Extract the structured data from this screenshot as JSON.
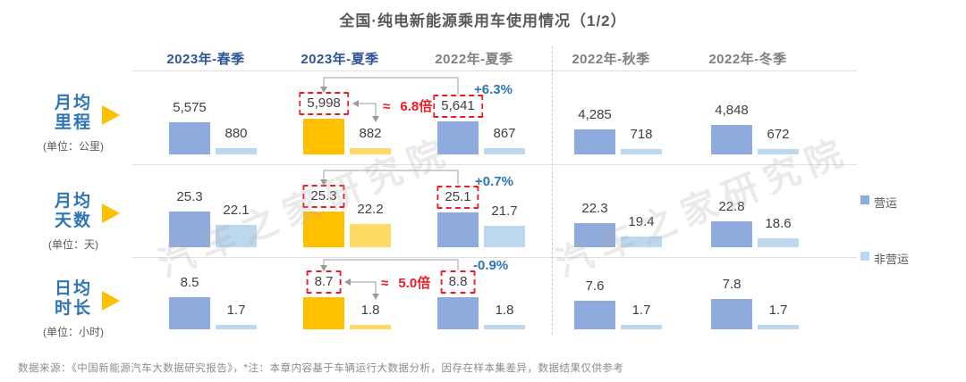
{
  "title": "全国·纯电新能源乘用车使用情况（1/2）",
  "columns": [
    {
      "label": "2023年-春季",
      "highlight": true
    },
    {
      "label": "2023年-夏季",
      "highlight": true
    },
    {
      "label": "2022年-夏季",
      "highlight": false
    },
    {
      "label": "2022年-秋季",
      "highlight": false
    },
    {
      "label": "2022年-冬季",
      "highlight": false
    }
  ],
  "rows": [
    {
      "label_lines": [
        "月均",
        "里程"
      ],
      "unit": "(单位：公里)",
      "yoy": "+6.3%",
      "ratio": "≈ 6.8倍",
      "cells": [
        {
          "op": "5,575",
          "nonop": "880",
          "boxed": false,
          "highlight": false
        },
        {
          "op": "5,998",
          "nonop": "882",
          "boxed": true,
          "highlight": true
        },
        {
          "op": "5,641",
          "nonop": "867",
          "boxed": true,
          "highlight": false
        },
        {
          "op": "4,285",
          "nonop": "718",
          "boxed": false,
          "highlight": false
        },
        {
          "op": "4,848",
          "nonop": "672",
          "boxed": false,
          "highlight": false
        }
      ]
    },
    {
      "label_lines": [
        "月均",
        "天数"
      ],
      "unit": "(单位：天)",
      "yoy": "+0.7%",
      "ratio": "",
      "cells": [
        {
          "op": "25.3",
          "nonop": "22.1",
          "boxed": false,
          "highlight": false
        },
        {
          "op": "25.3",
          "nonop": "22.2",
          "boxed": true,
          "highlight": true
        },
        {
          "op": "25.1",
          "nonop": "21.7",
          "boxed": true,
          "highlight": false
        },
        {
          "op": "22.3",
          "nonop": "19.4",
          "boxed": false,
          "highlight": false
        },
        {
          "op": "22.8",
          "nonop": "18.6",
          "boxed": false,
          "highlight": false
        }
      ]
    },
    {
      "label_lines": [
        "日均",
        "时长"
      ],
      "unit": "(单位：小时)",
      "yoy": "-0.9%",
      "ratio": "≈ 5.0倍",
      "cells": [
        {
          "op": "8.5",
          "nonop": "1.7",
          "boxed": false,
          "highlight": false
        },
        {
          "op": "8.7",
          "nonop": "1.8",
          "boxed": true,
          "highlight": true
        },
        {
          "op": "8.8",
          "nonop": "1.8",
          "boxed": true,
          "highlight": false
        },
        {
          "op": "7.6",
          "nonop": "1.7",
          "boxed": false,
          "highlight": false
        },
        {
          "op": "7.8",
          "nonop": "1.7",
          "boxed": false,
          "highlight": false
        }
      ]
    }
  ],
  "legend": [
    {
      "label": "营运",
      "color": "#8FAADC"
    },
    {
      "label": "非营运",
      "color": "#BDD7EE"
    }
  ],
  "colors": {
    "operating": "#8FAADC",
    "non_operating": "#BDD7EE",
    "highlight_operating": "#FFC000",
    "highlight_non_operating": "#FFD966",
    "red": "#EE1B24",
    "accent_blue": "#2E75B6",
    "header_blue": "#2F5597"
  },
  "footer": "数据来源：《中国新能源汽车大数据研究报告》，*注：本章内容基于车辆运行大数据分析，因存在样本集差异，数据结果仅供参考",
  "watermark": "汽车之家研究院",
  "chart_data": {
    "type": "bar",
    "title": "全国·纯电新能源乘用车使用情况（1/2）",
    "categories": [
      "2023年-春季",
      "2023年-夏季",
      "2022年-夏季",
      "2022年-秋季",
      "2022年-冬季"
    ],
    "legend_position": "right",
    "grid": false,
    "metrics": [
      {
        "name": "月均里程",
        "unit": "公里",
        "series": [
          {
            "name": "营运",
            "values": [
              5575,
              5998,
              5641,
              4285,
              4848
            ]
          },
          {
            "name": "非营运",
            "values": [
              880,
              882,
              867,
              718,
              672
            ]
          }
        ],
        "annotations": {
          "yoy_2023夏_vs_2022夏": "+6.3%",
          "营运_vs_非营运_2023夏": "≈ 6.8倍"
        }
      },
      {
        "name": "月均天数",
        "unit": "天",
        "series": [
          {
            "name": "营运",
            "values": [
              25.3,
              25.3,
              25.1,
              22.3,
              22.8
            ]
          },
          {
            "name": "非营运",
            "values": [
              22.1,
              22.2,
              21.7,
              19.4,
              18.6
            ]
          }
        ],
        "annotations": {
          "yoy_2023夏_vs_2022夏": "+0.7%"
        }
      },
      {
        "name": "日均时长",
        "unit": "小时",
        "series": [
          {
            "name": "营运",
            "values": [
              8.5,
              8.7,
              8.8,
              7.6,
              7.8
            ]
          },
          {
            "name": "非营运",
            "values": [
              1.7,
              1.8,
              1.8,
              1.7,
              1.7
            ]
          }
        ],
        "annotations": {
          "yoy_2023夏_vs_2022夏": "-0.9%",
          "营运_vs_非营运_2023夏": "≈ 5.0倍"
        }
      }
    ]
  }
}
